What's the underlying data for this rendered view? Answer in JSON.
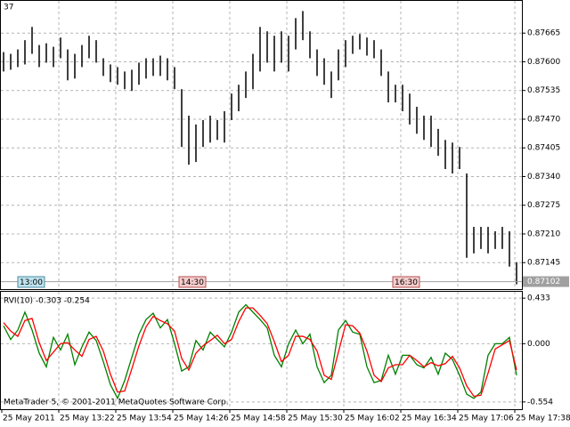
{
  "chart_data": [
    {
      "type": "range",
      "corner_label": "37",
      "color": "#000000",
      "highs": [
        0.87622,
        0.87618,
        0.87628,
        0.87649,
        0.87679,
        0.87638,
        0.87642,
        0.87634,
        0.87655,
        0.87628,
        0.87618,
        0.87638,
        0.87659,
        0.87649,
        0.87608,
        0.87594,
        0.87588,
        0.87578,
        0.87582,
        0.87598,
        0.87608,
        0.87608,
        0.87614,
        0.87608,
        0.87588,
        0.87538,
        0.87478,
        0.87458,
        0.87468,
        0.87478,
        0.87468,
        0.87488,
        0.87528,
        0.87548,
        0.87578,
        0.87618,
        0.87679,
        0.87669,
        0.87659,
        0.87669,
        0.87659,
        0.87699,
        0.87715,
        0.87669,
        0.87628,
        0.87608,
        0.87578,
        0.87628,
        0.87649,
        0.87659,
        0.87663,
        0.87655,
        0.87649,
        0.87628,
        0.87578,
        0.87548,
        0.87548,
        0.87528,
        0.87498,
        0.87478,
        0.87478,
        0.87448,
        0.87423,
        0.87417,
        0.87407,
        0.87347,
        0.87226,
        0.87226,
        0.87226,
        0.87216,
        0.87226,
        0.87216,
        0.87146
      ],
      "lows": [
        0.87578,
        0.87582,
        0.87588,
        0.87594,
        0.87618,
        0.87588,
        0.87598,
        0.87588,
        0.87608,
        0.87558,
        0.87562,
        0.87588,
        0.87608,
        0.87598,
        0.87568,
        0.87554,
        0.87548,
        0.87538,
        0.87534,
        0.87548,
        0.87562,
        0.87568,
        0.87568,
        0.87558,
        0.87538,
        0.87407,
        0.87367,
        0.87373,
        0.87407,
        0.87417,
        0.87423,
        0.87417,
        0.87468,
        0.87488,
        0.87518,
        0.87538,
        0.87578,
        0.87598,
        0.87578,
        0.87598,
        0.87578,
        0.87628,
        0.87649,
        0.87608,
        0.87568,
        0.87548,
        0.87518,
        0.87558,
        0.87588,
        0.87618,
        0.87628,
        0.87614,
        0.87608,
        0.87568,
        0.87508,
        0.87508,
        0.87488,
        0.87458,
        0.87437,
        0.87423,
        0.87407,
        0.87387,
        0.87357,
        0.87347,
        0.87357,
        0.87156,
        0.87166,
        0.87176,
        0.87166,
        0.87176,
        0.87176,
        0.87136,
        0.87096
      ],
      "ylim": [
        0.87085,
        0.8774
      ],
      "yticks": [
        0.87665,
        {
          "value": 0.876,
          "label": "0.87600"
        },
        0.87535,
        {
          "value": 0.8747,
          "label": "0.87470"
        },
        0.87405,
        {
          "value": 0.8734,
          "label": "0.87340"
        },
        0.87275,
        {
          "value": 0.8721,
          "label": "0.87210"
        },
        0.87145
      ],
      "last_price": {
        "value": 0.87102,
        "label": "0.87102"
      },
      "markers": [
        "13:00",
        "14:30",
        "16:30"
      ],
      "grid": true
    },
    {
      "type": "line",
      "title": "RVI(10) -0.303 -0.254",
      "series": [
        {
          "color": "#008000",
          "values": [
            0.17,
            0.04,
            0.13,
            0.3,
            0.13,
            -0.09,
            -0.22,
            0.06,
            -0.06,
            0.09,
            -0.2,
            -0.03,
            0.11,
            0.03,
            -0.17,
            -0.39,
            -0.52,
            -0.35,
            -0.13,
            0.09,
            0.23,
            0.29,
            0.15,
            0.23,
            0.0,
            -0.26,
            -0.22,
            0.03,
            -0.06,
            0.11,
            0.04,
            -0.03,
            0.11,
            0.3,
            0.37,
            0.3,
            0.23,
            0.15,
            -0.11,
            -0.22,
            0.0,
            0.13,
            0.0,
            0.09,
            -0.22,
            -0.37,
            -0.3,
            0.13,
            0.22,
            0.11,
            0.09,
            -0.22,
            -0.37,
            -0.35,
            -0.11,
            -0.29,
            -0.11,
            -0.11,
            -0.2,
            -0.23,
            -0.13,
            -0.29,
            -0.09,
            -0.15,
            -0.3,
            -0.48,
            -0.52,
            -0.46,
            -0.11,
            0.0,
            0.0,
            0.06,
            -0.3
          ]
        },
        {
          "color": "#ff0000",
          "values": [
            0.2,
            0.12,
            0.07,
            0.22,
            0.24,
            0.01,
            -0.16,
            -0.08,
            0.0,
            0.01,
            -0.06,
            -0.12,
            0.04,
            0.07,
            -0.07,
            -0.29,
            -0.46,
            -0.45,
            -0.24,
            -0.02,
            0.16,
            0.26,
            0.22,
            0.19,
            0.12,
            -0.14,
            -0.25,
            -0.09,
            -0.02,
            0.03,
            0.08,
            0.0,
            0.04,
            0.21,
            0.34,
            0.34,
            0.27,
            0.19,
            0.02,
            -0.17,
            -0.11,
            0.07,
            0.07,
            0.04,
            -0.07,
            -0.3,
            -0.34,
            -0.08,
            0.18,
            0.17,
            0.1,
            -0.07,
            -0.3,
            -0.36,
            -0.23,
            -0.2,
            -0.2,
            -0.11,
            -0.16,
            -0.22,
            -0.18,
            -0.21,
            -0.19,
            -0.12,
            -0.23,
            -0.4,
            -0.5,
            -0.49,
            -0.28,
            -0.05,
            -0.01,
            0.03,
            -0.25
          ]
        }
      ],
      "ylim": [
        -0.623,
        0.502
      ],
      "yticks": [
        0.433,
        {
          "value": 0,
          "label": "0.000"
        },
        -0.554
      ],
      "footer": "MetaTrader 5, © 2001-2011 MetaQuotes Software Corp.",
      "x_labels": [
        "25 May 2011",
        "25 May 13:22",
        "25 May 13:54",
        "25 May 14:26",
        "25 May 14:58",
        "25 May 15:30",
        "25 May 16:02",
        "25 May 16:34",
        "25 May 17:06",
        "25 May 17:38"
      ]
    }
  ]
}
